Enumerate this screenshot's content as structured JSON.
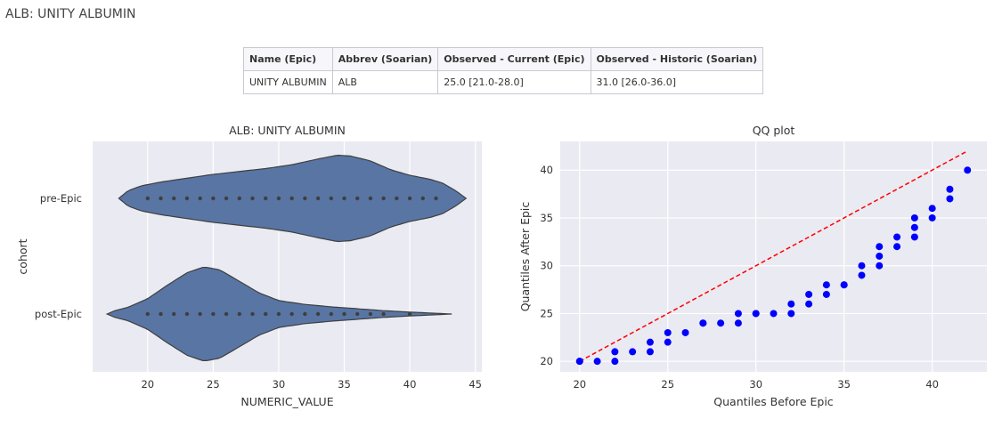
{
  "page": {
    "title": "ALB: UNITY ALBUMIN"
  },
  "table": {
    "headers": [
      "Name (Epic)",
      "Abbrev (Soarian)",
      "Observed - Current (Epic)",
      "Observed - Historic (Soarian)"
    ],
    "rows": [
      [
        "UNITY ALBUMIN",
        "ALB",
        "25.0 [21.0-28.0]",
        "31.0 [26.0-36.0]"
      ]
    ]
  },
  "chart_data": [
    {
      "type": "violin",
      "title": "ALB: UNITY ALBUMIN",
      "xlabel": "NUMERIC_VALUE",
      "ylabel": "cohort",
      "xlim": [
        15.8,
        45.5
      ],
      "xticks": [
        20,
        25,
        30,
        35,
        40,
        45
      ],
      "grid": true,
      "color": "#5875a4",
      "categories": [
        "pre-Epic",
        "post-Epic"
      ],
      "series": [
        {
          "name": "pre-Epic",
          "range": [
            17.8,
            44.3
          ],
          "density": [
            [
              17.8,
              0.0
            ],
            [
              18.5,
              0.16
            ],
            [
              19.5,
              0.26
            ],
            [
              21,
              0.34
            ],
            [
              23,
              0.42
            ],
            [
              25,
              0.5
            ],
            [
              27,
              0.56
            ],
            [
              29,
              0.62
            ],
            [
              31,
              0.7
            ],
            [
              33,
              0.82
            ],
            [
              34.5,
              0.9
            ],
            [
              35.5,
              0.88
            ],
            [
              37,
              0.78
            ],
            [
              38.5,
              0.6
            ],
            [
              40,
              0.48
            ],
            [
              41.5,
              0.4
            ],
            [
              42.5,
              0.32
            ],
            [
              43.5,
              0.16
            ],
            [
              44.3,
              0.0
            ]
          ],
          "points": [
            20,
            21,
            22,
            23,
            24,
            25,
            26,
            27,
            28,
            29,
            30,
            31,
            32,
            33,
            34,
            35,
            36,
            37,
            38,
            39,
            40,
            41,
            42
          ]
        },
        {
          "name": "post-Epic",
          "range": [
            16.9,
            43.2
          ],
          "density": [
            [
              16.9,
              0.0
            ],
            [
              17.5,
              0.07
            ],
            [
              18.5,
              0.14
            ],
            [
              20,
              0.32
            ],
            [
              21.5,
              0.6
            ],
            [
              23,
              0.86
            ],
            [
              24.3,
              0.98
            ],
            [
              25.5,
              0.92
            ],
            [
              27,
              0.68
            ],
            [
              28.5,
              0.44
            ],
            [
              30,
              0.28
            ],
            [
              32,
              0.2
            ],
            [
              34,
              0.15
            ],
            [
              36,
              0.11
            ],
            [
              38,
              0.07
            ],
            [
              40,
              0.04
            ],
            [
              42,
              0.015
            ],
            [
              43.2,
              0.0
            ]
          ],
          "points": [
            20,
            21,
            22,
            23,
            24,
            25,
            26,
            27,
            28,
            29,
            30,
            31,
            32,
            33,
            34,
            35,
            36,
            37,
            38,
            40
          ]
        }
      ]
    },
    {
      "type": "scatter",
      "title": "QQ plot",
      "xlabel": "Quantiles Before Epic",
      "ylabel": "Quantiles After Epic",
      "xlim": [
        18.9,
        43.1
      ],
      "ylim": [
        18.9,
        43.0
      ],
      "xticks": [
        20,
        25,
        30,
        35,
        40
      ],
      "yticks": [
        20,
        25,
        30,
        35,
        40
      ],
      "grid": true,
      "point_color": "#0000ff",
      "reference_line": {
        "from": [
          20,
          20
        ],
        "to": [
          42,
          42
        ],
        "color": "#ff0000",
        "style": "dashed"
      },
      "x": [
        20,
        20,
        21,
        22,
        22,
        23,
        24,
        24,
        25,
        25,
        26,
        27,
        27,
        28,
        29,
        29,
        30,
        30,
        31,
        32,
        32,
        33,
        33,
        34,
        34,
        35,
        35,
        36,
        36,
        37,
        37,
        37,
        38,
        38,
        39,
        39,
        39,
        40,
        40,
        41,
        41,
        42
      ],
      "y": [
        20,
        20,
        20,
        20,
        21,
        21,
        21,
        22,
        22,
        23,
        23,
        24,
        24,
        24,
        24,
        25,
        25,
        25,
        25,
        25,
        26,
        26,
        27,
        27,
        28,
        28,
        28,
        29,
        30,
        30,
        31,
        32,
        32,
        33,
        33,
        34,
        35,
        35,
        36,
        37,
        38,
        40
      ]
    }
  ]
}
